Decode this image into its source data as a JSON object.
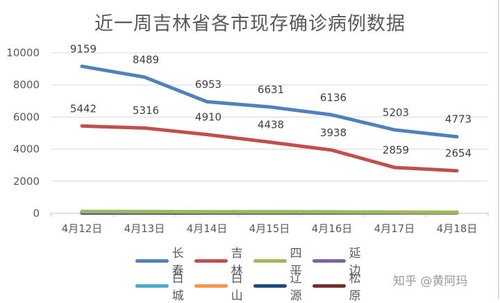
{
  "chart_data": {
    "type": "line",
    "title": "近一周吉林省各市现存确诊病例数据",
    "xlabel": "",
    "ylabel": "",
    "categories": [
      "4月12日",
      "4月13日",
      "4月14日",
      "4月15日",
      "4月16日",
      "4月17日",
      "4月18日"
    ],
    "ylim": [
      0,
      10000
    ],
    "yticks": [
      0,
      2000,
      4000,
      6000,
      8000,
      10000
    ],
    "grid": true,
    "legend_position": "bottom",
    "series": [
      {
        "name": "长春",
        "color": "#4f81bd",
        "values": [
          9159,
          8489,
          6953,
          6631,
          6136,
          5203,
          4773
        ],
        "labels": true
      },
      {
        "name": "吉林",
        "color": "#c0504d",
        "values": [
          5442,
          5316,
          4910,
          4438,
          3938,
          2859,
          2654
        ],
        "labels": true
      },
      {
        "name": "四平",
        "color": "#9bbb59",
        "values": [
          120,
          115,
          100,
          95,
          90,
          80,
          70
        ],
        "labels": false
      },
      {
        "name": "延边",
        "color": "#8064a2",
        "values": [
          60,
          55,
          50,
          50,
          45,
          40,
          35
        ],
        "labels": false
      },
      {
        "name": "白城",
        "color": "#4bacc6",
        "values": [
          110,
          105,
          100,
          95,
          90,
          60,
          40
        ],
        "labels": false
      },
      {
        "name": "白山",
        "color": "#f79646",
        "values": [
          80,
          70,
          60,
          50,
          40,
          30,
          25
        ],
        "labels": false
      },
      {
        "name": "辽源",
        "color": "#1f497d",
        "values": [
          20,
          20,
          20,
          20,
          20,
          20,
          60
        ],
        "labels": false
      },
      {
        "name": "松原",
        "color": "#772c2a",
        "values": [
          30,
          30,
          30,
          30,
          30,
          30,
          30
        ],
        "labels": false
      }
    ]
  },
  "legend": {
    "row1": [
      "长春",
      "吉林",
      "四平",
      "延边"
    ],
    "row2": [
      "白城",
      "白山",
      "辽源",
      "松原"
    ]
  },
  "watermark": "知乎 @黄阿玛"
}
